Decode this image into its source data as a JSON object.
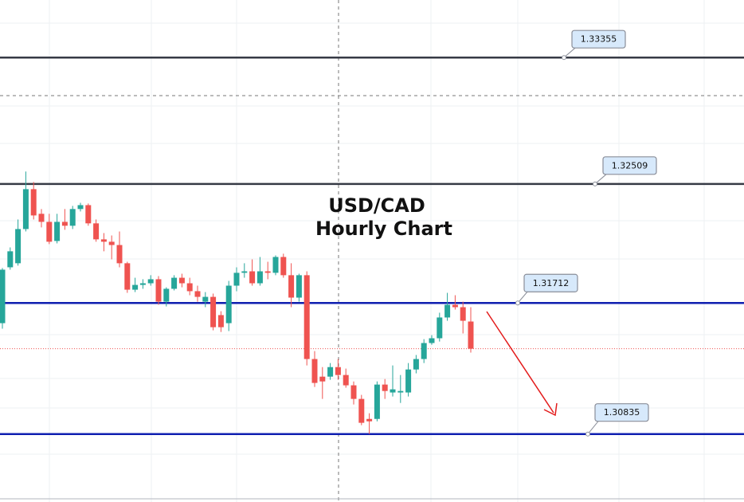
{
  "chart_data": {
    "type": "candlestick",
    "title": "USD/CAD",
    "subtitle": "Hourly Chart",
    "ylim": [
      1.3038,
      1.3374
    ],
    "up_color": "#26a69a",
    "down_color": "#ef5350",
    "open": [
      1.31577,
      1.31951,
      1.31978,
      1.32207,
      1.32474,
      1.32309,
      1.32255,
      1.32127,
      1.32255,
      1.32229,
      1.32341,
      1.32367,
      1.32245,
      1.32138,
      1.32122,
      1.321,
      1.31978,
      1.31801,
      1.31833,
      1.31844,
      1.31871,
      1.31721,
      1.31807,
      1.31881,
      1.31844,
      1.31791,
      1.31721,
      1.31753,
      1.31631,
      1.31577,
      1.31828,
      1.31914,
      1.31924,
      1.31844,
      1.31924,
      1.31914,
      1.3202,
      1.31898,
      1.31748,
      1.31898,
      1.31337,
      1.31219,
      1.31219,
      1.31283,
      1.3123,
      1.31161,
      1.3107,
      1.30936,
      1.30936,
      1.31166,
      1.31113,
      1.31113,
      1.31113,
      1.31267,
      1.31337,
      1.31444,
      1.31476,
      1.31615,
      1.317,
      1.31684,
      1.31588
    ],
    "high": [
      1.31946,
      1.32084,
      1.32271,
      1.32592,
      1.32522,
      1.32341,
      1.32309,
      1.32309,
      1.32341,
      1.32362,
      1.32383,
      1.32378,
      1.32271,
      1.3218,
      1.32164,
      1.32191,
      1.31988,
      1.31881,
      1.31871,
      1.31898,
      1.31892,
      1.31817,
      1.31898,
      1.31908,
      1.31881,
      1.31828,
      1.31785,
      1.31775,
      1.31657,
      1.3186,
      1.31951,
      1.31978,
      1.32004,
      1.3202,
      1.31988,
      1.32031,
      1.32042,
      1.31978,
      1.31908,
      1.31924,
      1.3139,
      1.31283,
      1.3131,
      1.31337,
      1.31273,
      1.31187,
      1.31097,
      1.30974,
      1.31187,
      1.31203,
      1.31294,
      1.3123,
      1.3131,
      1.31364,
      1.3147,
      1.31497,
      1.31647,
      1.3178,
      1.31764,
      1.31721,
      1.31684
    ],
    "low": [
      1.3154,
      1.31935,
      1.31962,
      1.32191,
      1.32271,
      1.32218,
      1.32106,
      1.32111,
      1.32202,
      1.32207,
      1.32325,
      1.32229,
      1.32122,
      1.32058,
      1.32004,
      1.31951,
      1.3178,
      1.31785,
      1.31807,
      1.31828,
      1.317,
      1.31689,
      1.31796,
      1.31817,
      1.31764,
      1.31721,
      1.31684,
      1.31529,
      1.31518,
      1.31524,
      1.31791,
      1.31881,
      1.31828,
      1.31828,
      1.31871,
      1.31898,
      1.31881,
      1.31684,
      1.31721,
      1.31294,
      1.3115,
      1.3107,
      1.31198,
      1.31198,
      1.31145,
      1.31033,
      1.30894,
      1.30835,
      1.3092,
      1.3107,
      1.31086,
      1.31043,
      1.31086,
      1.31241,
      1.3131,
      1.31433,
      1.31454,
      1.31593,
      1.31668,
      1.31508,
      1.3138
    ],
    "close": [
      1.31935,
      1.32058,
      1.32207,
      1.32474,
      1.32298,
      1.32255,
      1.32122,
      1.32255,
      1.32229,
      1.32341,
      1.32367,
      1.32245,
      1.32138,
      1.32122,
      1.321,
      1.31978,
      1.31801,
      1.31833,
      1.31844,
      1.31871,
      1.31721,
      1.31807,
      1.31881,
      1.31844,
      1.31791,
      1.31753,
      1.31753,
      1.3155,
      1.3155,
      1.31828,
      1.31914,
      1.31924,
      1.31844,
      1.31924,
      1.31914,
      1.3202,
      1.31898,
      1.31748,
      1.31898,
      1.31337,
      1.31177,
      1.31187,
      1.31283,
      1.3123,
      1.31161,
      1.3107,
      1.3091,
      1.3092,
      1.31166,
      1.31123,
      1.31134,
      1.31123,
      1.31267,
      1.31337,
      1.31444,
      1.31476,
      1.31615,
      1.317,
      1.31684,
      1.31593,
      1.31406
    ],
    "levels": [
      {
        "value": 1.33355,
        "color": "#363a45"
      },
      {
        "value": 1.32509,
        "color": "#363a45"
      },
      {
        "value": 1.31712,
        "color": "#0f1fb0"
      },
      {
        "value": 1.30835,
        "color": "#0f1fb0"
      }
    ]
  }
}
